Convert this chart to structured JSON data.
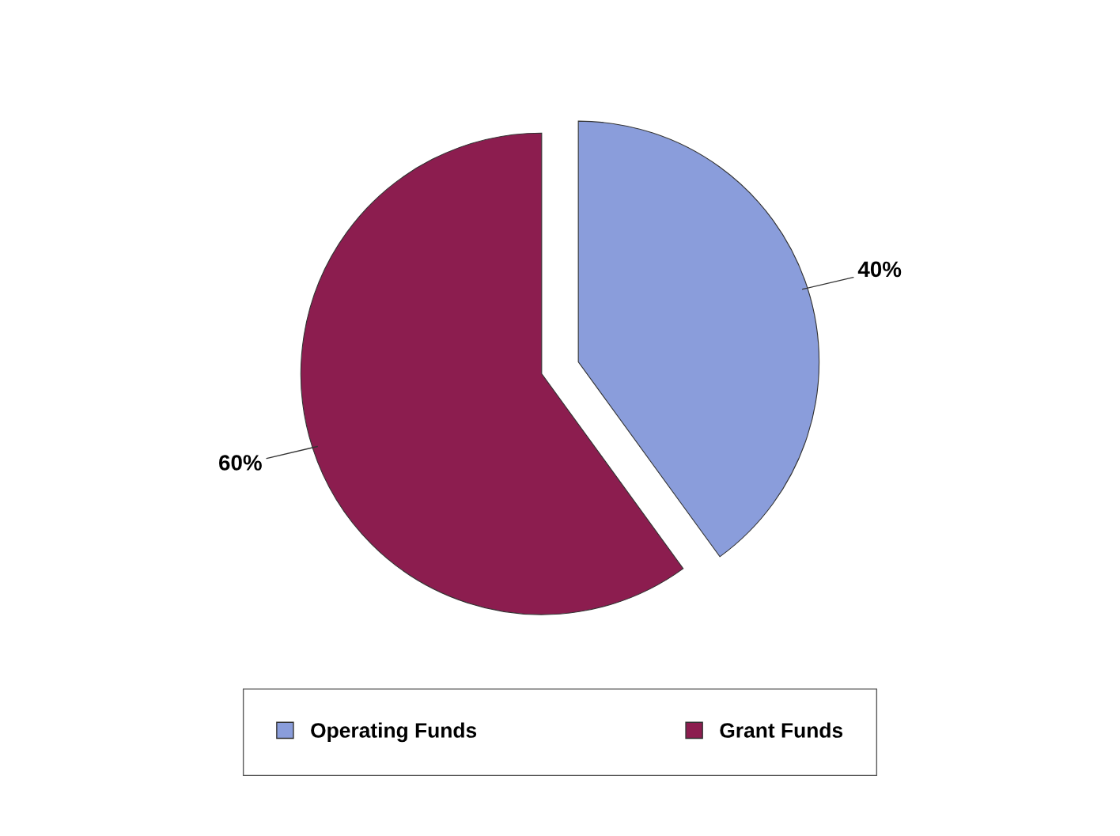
{
  "chart_data": {
    "type": "pie",
    "categories": [
      "Operating Funds",
      "Grant Funds"
    ],
    "values": [
      40,
      60
    ],
    "colors": [
      "#8a9ddb",
      "#8c1d4f"
    ],
    "value_labels": [
      "40%",
      "60%"
    ],
    "legend": "bottom"
  }
}
